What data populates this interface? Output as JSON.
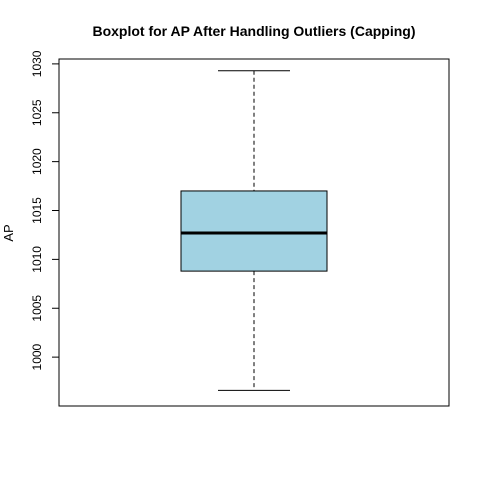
{
  "chart_data": {
    "type": "boxplot",
    "title": "Boxplot for AP After Handling Outliers (Capping)",
    "xlabel": "",
    "ylabel": "AP",
    "ylim": [
      995.0,
      1030.5
    ],
    "yticks": [
      1000,
      1005,
      1010,
      1015,
      1020,
      1025,
      1030
    ],
    "series": [
      {
        "whisker_low": 996.6,
        "q1": 1008.8,
        "median": 1012.7,
        "q3": 1017.0,
        "whisker_high": 1029.3
      }
    ],
    "box_color": "#a1d2e2",
    "grid": false
  }
}
